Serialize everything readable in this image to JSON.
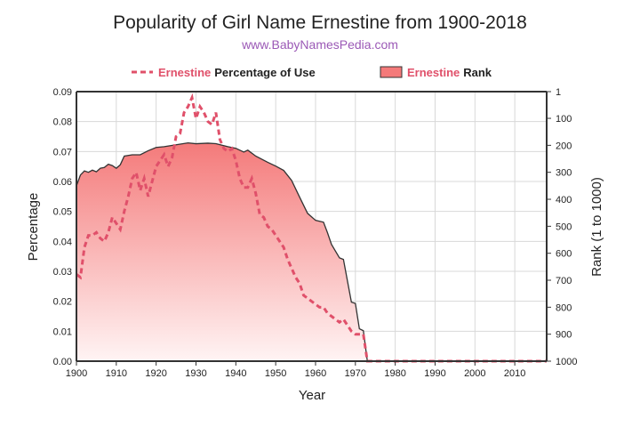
{
  "title": "Popularity of Girl Name Ernestine from 1900-2018",
  "subtitle": "www.BabyNamesPedia.com",
  "legend": [
    {
      "name": "Ernestine",
      "suffix": "Percentage of Use",
      "style": "dashed-line"
    },
    {
      "name": "Ernestine",
      "suffix": "Rank",
      "style": "filled-area"
    }
  ],
  "colors": {
    "line": "#e0506a",
    "area": "#f47a7a",
    "rank_stroke": "#333333",
    "legend_name": "#e0506a",
    "subtitle": "#9b59b6"
  },
  "chart_data": {
    "type": "line",
    "xlabel": "Year",
    "ylabel": "Percentage",
    "y2label": "Rank (1 to 1000)",
    "xlim": [
      1900,
      2018
    ],
    "ylim": [
      0,
      0.09
    ],
    "y2lim": [
      1,
      1000
    ],
    "y2_inverted": true,
    "grid": true,
    "legend_position": "top",
    "x_ticks": [
      "1900",
      "1910",
      "1920",
      "1930",
      "1940",
      "1950",
      "1960",
      "1970",
      "1980",
      "1990",
      "2000",
      "2010"
    ],
    "y_ticks": [
      "0.00",
      "0.01",
      "0.02",
      "0.03",
      "0.04",
      "0.05",
      "0.06",
      "0.07",
      "0.08",
      "0.09"
    ],
    "y2_ticks": [
      "1",
      "100",
      "200",
      "300",
      "400",
      "500",
      "600",
      "700",
      "800",
      "900",
      "1000"
    ],
    "series": [
      {
        "name": "Ernestine Percentage of Use",
        "axis": "left",
        "x": [
          1900,
          1901,
          1902,
          1903,
          1904,
          1905,
          1906,
          1907,
          1908,
          1909,
          1910,
          1911,
          1912,
          1913,
          1914,
          1915,
          1916,
          1917,
          1918,
          1919,
          1920,
          1921,
          1922,
          1923,
          1924,
          1925,
          1926,
          1927,
          1928,
          1929,
          1930,
          1931,
          1932,
          1933,
          1934,
          1935,
          1936,
          1937,
          1938,
          1939,
          1940,
          1941,
          1942,
          1943,
          1944,
          1945,
          1946,
          1947,
          1948,
          1949,
          1950,
          1951,
          1952,
          1953,
          1954,
          1955,
          1956,
          1957,
          1958,
          1959,
          1960,
          1961,
          1962,
          1963,
          1964,
          1965,
          1966,
          1967,
          1968,
          1969,
          1970,
          1971,
          1972,
          1973,
          2018
        ],
        "y": [
          0.029,
          0.028,
          0.038,
          0.042,
          0.042,
          0.043,
          0.041,
          0.04,
          0.043,
          0.048,
          0.046,
          0.044,
          0.05,
          0.055,
          0.061,
          0.063,
          0.057,
          0.061,
          0.055,
          0.06,
          0.065,
          0.067,
          0.069,
          0.065,
          0.068,
          0.075,
          0.076,
          0.083,
          0.085,
          0.088,
          0.081,
          0.085,
          0.083,
          0.08,
          0.079,
          0.083,
          0.074,
          0.071,
          0.07,
          0.071,
          0.067,
          0.061,
          0.058,
          0.058,
          0.061,
          0.056,
          0.049,
          0.048,
          0.045,
          0.044,
          0.042,
          0.04,
          0.038,
          0.034,
          0.031,
          0.028,
          0.026,
          0.022,
          0.021,
          0.02,
          0.019,
          0.018,
          0.018,
          0.016,
          0.015,
          0.014,
          0.013,
          0.014,
          0.012,
          0.01,
          0.009,
          0.009,
          0.009,
          0.0,
          0.0
        ]
      },
      {
        "name": "Ernestine Rank",
        "axis": "right",
        "x": [
          1900,
          1901,
          1902,
          1903,
          1904,
          1905,
          1906,
          1907,
          1908,
          1909,
          1910,
          1911,
          1912,
          1914,
          1916,
          1918,
          1920,
          1922,
          1925,
          1928,
          1930,
          1933,
          1935,
          1938,
          1940,
          1942,
          1943,
          1945,
          1948,
          1950,
          1952,
          1954,
          1956,
          1958,
          1960,
          1962,
          1963,
          1964,
          1966,
          1967,
          1969,
          1970,
          1971,
          1972,
          1973,
          2018
        ],
        "y": [
          350,
          310,
          295,
          300,
          292,
          298,
          285,
          282,
          270,
          275,
          285,
          272,
          240,
          235,
          235,
          220,
          208,
          205,
          198,
          191,
          194,
          192,
          194,
          205,
          211,
          225,
          218,
          240,
          263,
          277,
          293,
          330,
          392,
          452,
          478,
          485,
          524,
          567,
          617,
          623,
          781,
          786,
          880,
          887,
          1000,
          1000
        ]
      }
    ]
  }
}
